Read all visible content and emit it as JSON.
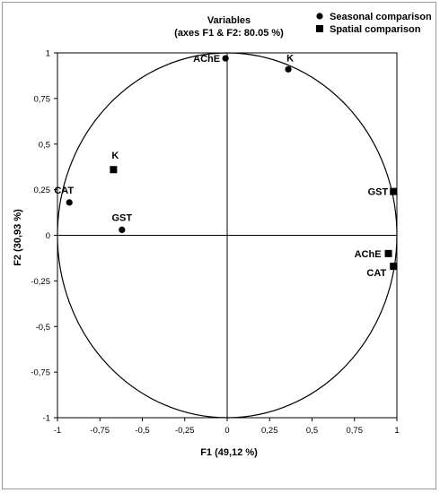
{
  "chart_data": {
    "type": "scatter",
    "title": "Variables",
    "subtitle": "(axes F1 & F2: 80.05 %)",
    "xlabel": "F1 (49,12 %)",
    "ylabel": "F2 (30,93 %)",
    "xlim": [
      -1,
      1
    ],
    "ylim": [
      -1,
      1
    ],
    "x_ticks": [
      "-1",
      "-0,75",
      "-0,5",
      "-0,25",
      "0",
      "0,25",
      "0,5",
      "0,75",
      "1"
    ],
    "y_ticks": [
      "-1",
      "-0,75",
      "-0,5",
      "-0,25",
      "0",
      "0,25",
      "0,5",
      "0,75",
      "1"
    ],
    "legend_position": "top-right",
    "correlation_circle": true,
    "series": [
      {
        "name": "Seasonal comparison",
        "marker": "circle",
        "points": [
          {
            "label": "AChE",
            "x": -0.01,
            "y": 0.97
          },
          {
            "label": "K",
            "x": 0.36,
            "y": 0.91
          },
          {
            "label": "CAT",
            "x": -0.93,
            "y": 0.18
          },
          {
            "label": "GST",
            "x": -0.62,
            "y": 0.03
          }
        ]
      },
      {
        "name": "Spatial comparison",
        "marker": "square",
        "points": [
          {
            "label": "K",
            "x": -0.67,
            "y": 0.36
          },
          {
            "label": "GST",
            "x": 0.98,
            "y": 0.24
          },
          {
            "label": "AChE",
            "x": 0.95,
            "y": -0.1
          },
          {
            "label": "CAT",
            "x": 0.98,
            "y": -0.17
          }
        ]
      }
    ]
  }
}
